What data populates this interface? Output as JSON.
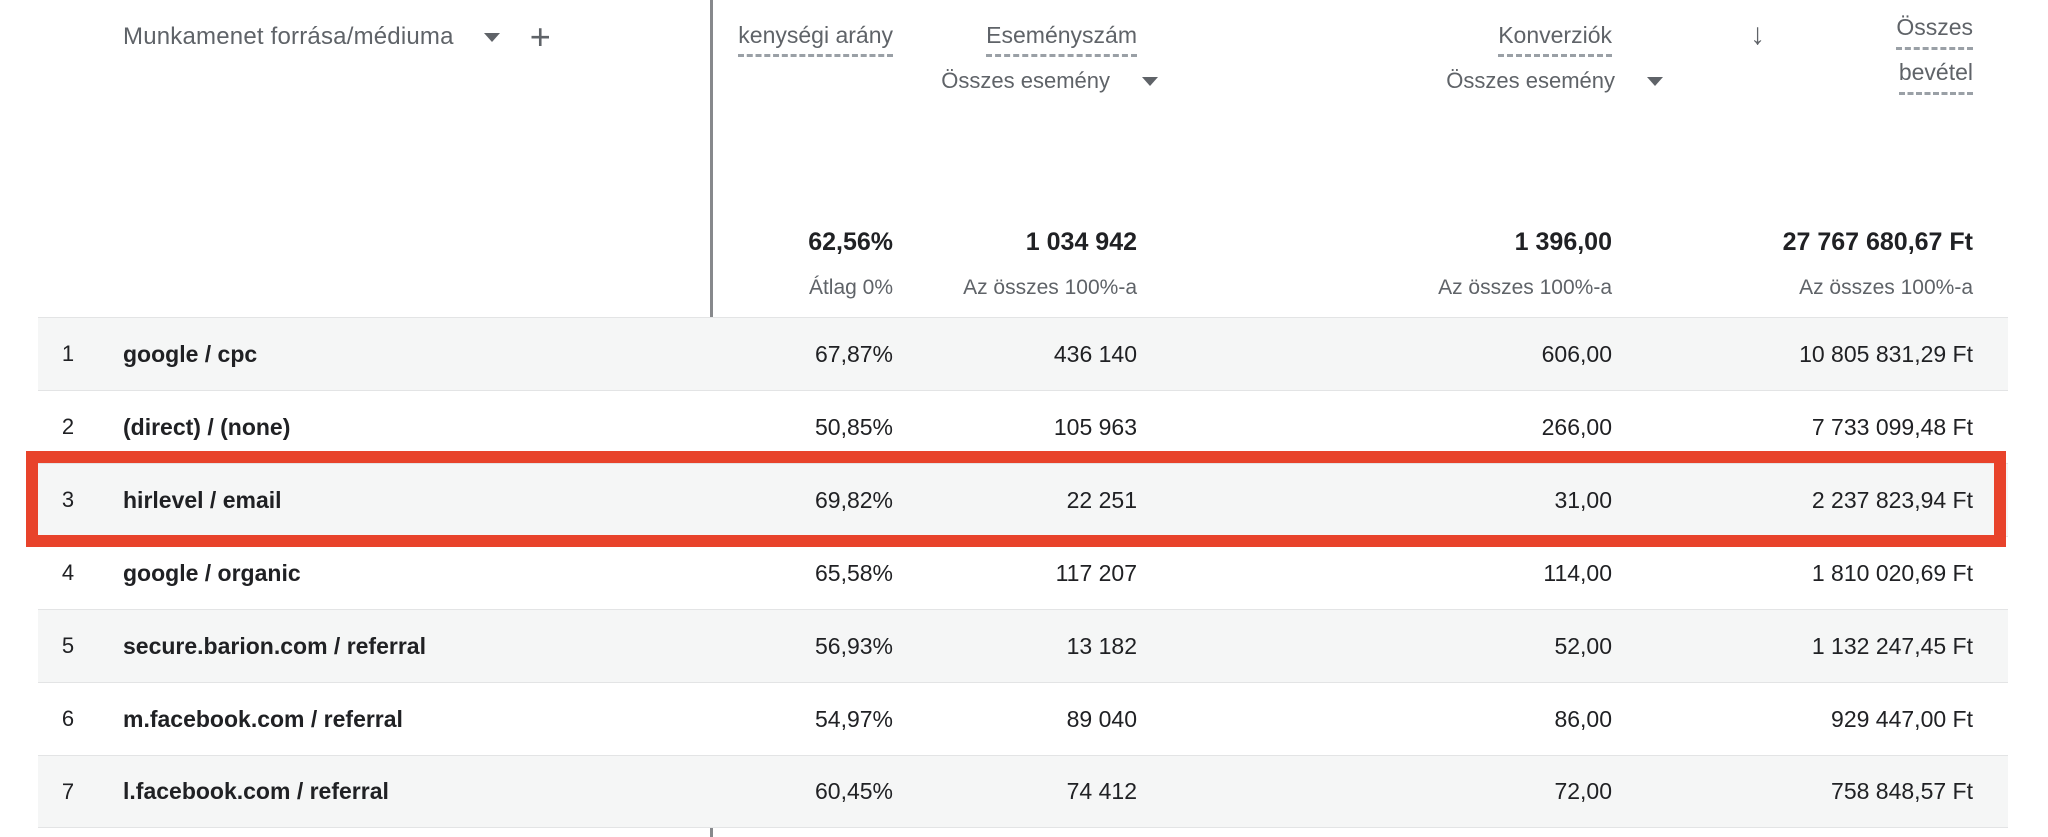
{
  "header": {
    "dimension_label": "Munkamenet forrása/médiuma",
    "add_symbol": "+",
    "sort_arrow": "↓",
    "columns": {
      "engagement": {
        "label": "kenységi arány"
      },
      "events": {
        "label": "Eseményszám",
        "selector": "Összes esemény"
      },
      "conversions": {
        "label": "Konverziók",
        "selector": "Összes esemény"
      },
      "revenue": {
        "label_line1": "Összes",
        "label_line2": "bevétel"
      }
    }
  },
  "totals": {
    "engagement": {
      "value": "62,56%",
      "note": "Átlag 0%"
    },
    "events": {
      "value": "1 034 942",
      "note": "Az összes 100%-a"
    },
    "conversions": {
      "value": "1 396,00",
      "note": "Az összes 100%-a"
    },
    "revenue": {
      "value": "27 767 680,67 Ft",
      "note": "Az összes 100%-a"
    }
  },
  "rows": [
    {
      "num": "1",
      "dimension": "google / cpc",
      "engagement": "67,87%",
      "events": "436 140",
      "conversions": "606,00",
      "revenue": "10 805 831,29 Ft"
    },
    {
      "num": "2",
      "dimension": "(direct) / (none)",
      "engagement": "50,85%",
      "events": "105 963",
      "conversions": "266,00",
      "revenue": "7 733 099,48 Ft"
    },
    {
      "num": "3",
      "dimension": "hirlevel / email",
      "engagement": "69,82%",
      "events": "22 251",
      "conversions": "31,00",
      "revenue": "2 237 823,94 Ft"
    },
    {
      "num": "4",
      "dimension": "google / organic",
      "engagement": "65,58%",
      "events": "117 207",
      "conversions": "114,00",
      "revenue": "1 810 020,69 Ft"
    },
    {
      "num": "5",
      "dimension": "secure.barion.com / referral",
      "engagement": "56,93%",
      "events": "13 182",
      "conversions": "52,00",
      "revenue": "1 132 247,45 Ft"
    },
    {
      "num": "6",
      "dimension": "m.facebook.com / referral",
      "engagement": "54,97%",
      "events": "89 040",
      "conversions": "86,00",
      "revenue": "929 447,00 Ft"
    },
    {
      "num": "7",
      "dimension": "l.facebook.com / referral",
      "engagement": "60,45%",
      "events": "74 412",
      "conversions": "72,00",
      "revenue": "758 848,57 Ft"
    }
  ],
  "highlight": {
    "row_number": "3",
    "color": "#e8432b"
  },
  "colors": {
    "header_text": "#5f6368",
    "value_text": "#202124",
    "alt_row_bg": "#f5f6f6",
    "divider": "#87898c",
    "highlight_red": "#e8432b"
  }
}
